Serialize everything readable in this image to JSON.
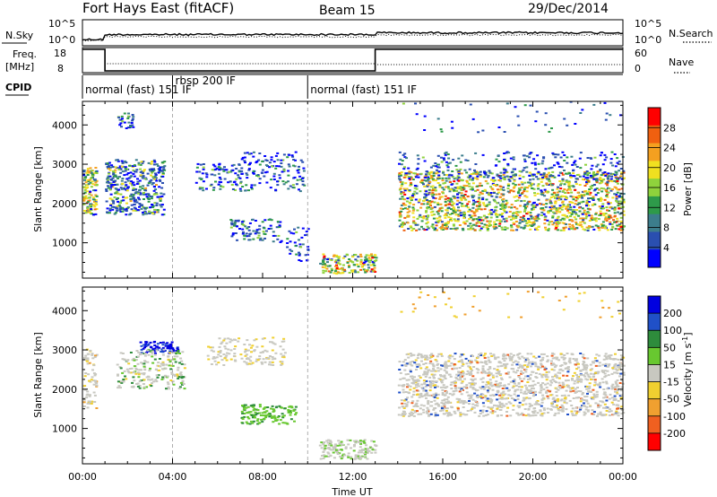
{
  "header": {
    "title": "Fort Hays East (fitACF)",
    "beam": "Beam 15",
    "date": "29/Dec/2014"
  },
  "chart_data": [
    {
      "type": "line",
      "name": "noise-panel",
      "left_label": "N.Sky",
      "right_label": "N.Search",
      "left_ticks": [
        "10^5",
        "10^0"
      ],
      "right_ticks": [
        "10^5",
        "10^0"
      ],
      "series": [
        {
          "name": "N.Sky",
          "style": "solid"
        },
        {
          "name": "N.Search",
          "style": "dotted"
        }
      ]
    },
    {
      "type": "line",
      "name": "freq-panel",
      "left_label_1": "Freq.",
      "left_label_2": "[MHz]",
      "right_label": "Nave",
      "left_ticks": [
        "18",
        "8"
      ],
      "right_ticks": [
        "60",
        "0"
      ],
      "freq_steps": [
        {
          "from_hour": 0,
          "to_hour": 1,
          "level": 18
        },
        {
          "from_hour": 1,
          "to_hour": 13,
          "level": 8
        },
        {
          "from_hour": 13,
          "to_hour": 24,
          "level": 18
        }
      ]
    },
    {
      "type": "table",
      "name": "cpid-panel",
      "label": "CPID",
      "segments": [
        {
          "start_hour": 0,
          "end_hour": 4,
          "text": "normal (fast) 151 IF"
        },
        {
          "start_hour": 4,
          "end_hour": 10,
          "text": "rbsp 200 IF"
        },
        {
          "start_hour": 10,
          "end_hour": 24,
          "text": "normal (fast) 151 IF"
        }
      ]
    },
    {
      "type": "heatmap",
      "name": "power-panel",
      "ylabel": "Slant Range [km]",
      "y_ticks": [
        1000,
        2000,
        3000,
        4000
      ],
      "ylim": [
        100,
        4600
      ],
      "colorbar_label": "Power [dB]",
      "colorbar_ticks": [
        4,
        8,
        12,
        16,
        20,
        24,
        28
      ],
      "colorbar_colors": [
        "#0000ff",
        "#2a4fb0",
        "#3c7d8c",
        "#2e9a4a",
        "#8fd23c",
        "#f0e020",
        "#f4a020",
        "#f06010",
        "#ff0000"
      ]
    },
    {
      "type": "heatmap",
      "name": "velocity-panel",
      "ylabel": "Slant Range [km]",
      "y_ticks": [
        1000,
        2000,
        3000,
        4000
      ],
      "ylim": [
        100,
        4600
      ],
      "xlabel": "Time UT",
      "x_ticks": [
        "00:00",
        "04:00",
        "08:00",
        "12:00",
        "16:00",
        "20:00",
        "00:00"
      ],
      "colorbar_label": "Velocity [m s",
      "colorbar_sup": "-1",
      "colorbar_ticks": [
        "200",
        "100",
        "50",
        "15",
        "-15",
        "-50",
        "-100",
        "-200"
      ],
      "colorbar_colors": [
        "#0000e0",
        "#2050c8",
        "#2e8c3c",
        "#68c830",
        "#c8c8c0",
        "#f0d030",
        "#f0a030",
        "#f06020",
        "#ff0000"
      ]
    }
  ]
}
